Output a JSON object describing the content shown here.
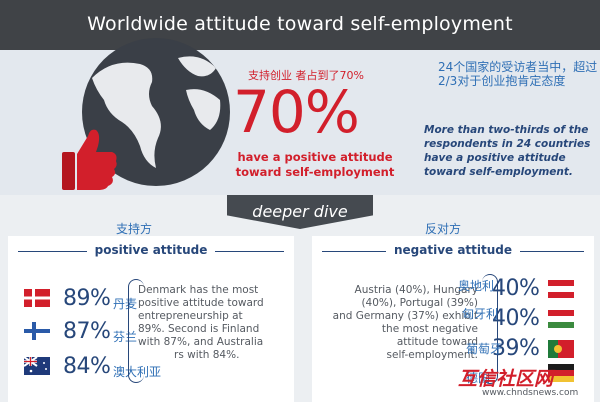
{
  "header": {
    "title": "Worldwide attitude toward self-employment"
  },
  "hero": {
    "cn_headline": "支持创业 者占到了70%",
    "big_percent": "70%",
    "positive_line1": "have a positive attitude",
    "positive_line2": "toward self-employment",
    "cn_summary": "24个国家的受访者当中，超过2/3对于创业抱肯定态度",
    "en_summary": "More than two-thirds of the respondents in 24 countries have a positive attitude toward self-employment."
  },
  "deeper_dive": "deeper dive",
  "support_cn": "支持方",
  "oppose_cn": "反对方",
  "positive": {
    "title": "positive attitude",
    "rows": [
      {
        "percent": "89%",
        "country_cn": "丹麦"
      },
      {
        "percent": "87%",
        "country_cn": "芬兰"
      },
      {
        "percent": "84%",
        "country_cn": "澳大利亚"
      }
    ],
    "desc_lines": [
      "Denmark has the most",
      "positive attitude toward",
      "entrepreneurship at",
      "89%. Second is Finland",
      "with 87%, and Australia",
      "rs with 84%."
    ]
  },
  "negative": {
    "title": "negative attitude",
    "desc_lines": [
      "Austria (40%), Hungary",
      "(40%), Portugal (39%)",
      "and Germany (37%) exhibit",
      "the most negative",
      "attitude toward",
      "self-employment."
    ],
    "rows": [
      {
        "percent": "40%",
        "country_cn": "奥地利"
      },
      {
        "percent": "40%",
        "country_cn": "匈牙利"
      },
      {
        "percent": "39%",
        "country_cn": "葡萄牙"
      },
      {
        "percent": "37%",
        "country_cn": "德国"
      }
    ]
  },
  "watermark": "互信社区网",
  "site": "www.chndsnews.com",
  "colors": {
    "accent_red": "#d21f2b",
    "navy": "#27477a",
    "cn_blue": "#2f6fb5",
    "header_bg": "#404347"
  }
}
